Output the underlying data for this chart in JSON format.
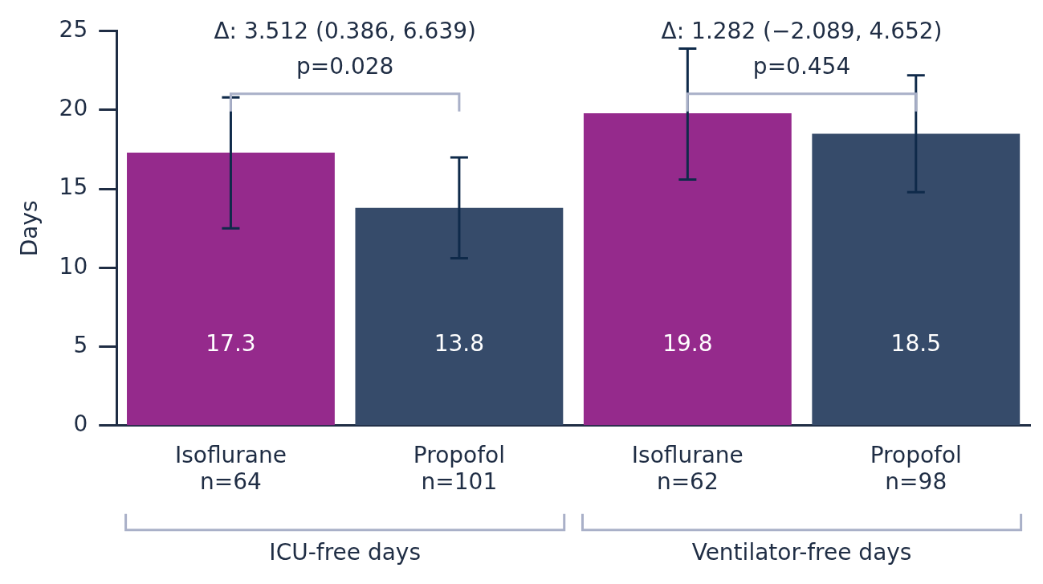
{
  "chart_data": {
    "type": "bar",
    "categories": [
      "Isoflurane\nn=64",
      "Propofol\nn=101",
      "Isoflurane\nn=62",
      "Propofol\nn=98"
    ],
    "values": [
      17.3,
      13.8,
      19.8,
      18.5
    ],
    "colors": [
      "#952a8c",
      "#364b6a",
      "#952a8c",
      "#364b6a"
    ],
    "errors": [
      [
        12.5,
        20.8
      ],
      [
        10.6,
        17.0
      ],
      [
        15.6,
        23.9
      ],
      [
        14.8,
        22.2
      ]
    ],
    "ylabel": "Days",
    "ylim": [
      0,
      25
    ],
    "yticks": [
      0,
      5,
      10,
      15,
      20,
      25
    ],
    "data_labels": true,
    "grid": false,
    "legend": false,
    "annotations": [
      "Δ: 3.512 (0.386, 6.639)",
      "p=0.028",
      "Δ: 1.282 (−2.089, 4.652)",
      "p=0.454",
      "ICU-free days",
      "Ventilator-free days"
    ]
  }
}
